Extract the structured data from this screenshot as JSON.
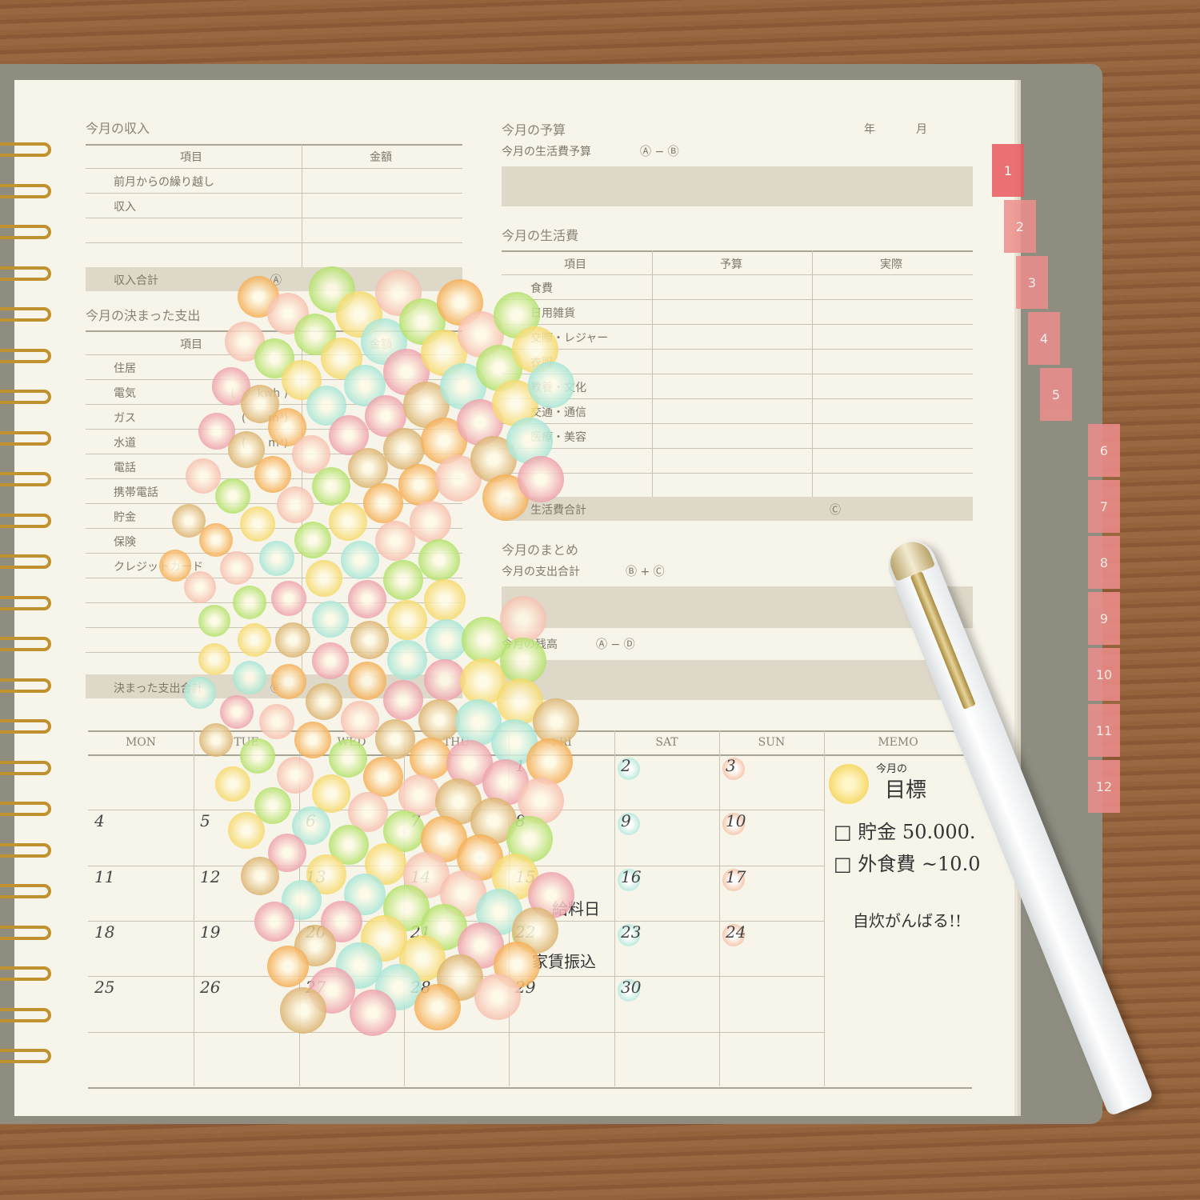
{
  "income": {
    "title": "今月の収入",
    "col_item": "項目",
    "col_amount": "金額",
    "rows": [
      "前月からの繰り越し",
      "収入",
      "",
      ""
    ],
    "total": "収入合計",
    "total_mark": "Ⓐ"
  },
  "fixed": {
    "title": "今月の決まった支出",
    "col_item": "項目",
    "col_amount": "金額",
    "rows": [
      {
        "label": "住居",
        "unit": ""
      },
      {
        "label": "電気",
        "unit": "(　　kwh )"
      },
      {
        "label": "ガス",
        "unit": "(　　m³)"
      },
      {
        "label": "水道",
        "unit": "(　　m³)"
      },
      {
        "label": "電話",
        "unit": ""
      },
      {
        "label": "携帯電話",
        "unit": ""
      },
      {
        "label": "貯金",
        "unit": ""
      },
      {
        "label": "保険",
        "unit": ""
      },
      {
        "label": "クレジットカード",
        "unit": ""
      }
    ],
    "total": "決まった支出合計",
    "total_mark": "Ⓑ"
  },
  "budget": {
    "title": "今月の予算",
    "year": "年",
    "month": "月",
    "living_budget": "今月の生活費予算",
    "living_formula": "Ⓐ − Ⓑ"
  },
  "living": {
    "title": "今月の生活費",
    "col_item": "項目",
    "col_budget": "予算",
    "col_actual": "実際",
    "rows": [
      "食費",
      "日用雑貨",
      "交際・レジャー",
      "衣服",
      "教養・文化",
      "交通・通信",
      "医療・美容",
      "",
      ""
    ],
    "total": "生活費合計",
    "total_mark": "Ⓒ"
  },
  "summary": {
    "title": "今月のまとめ",
    "spend": "今月の支出合計",
    "spend_formula": "Ⓑ + Ⓒ",
    "spend_mark": "Ⓓ",
    "balance": "今月の残高",
    "balance_formula": "Ⓐ − Ⓓ"
  },
  "calendar": {
    "days": [
      "MON",
      "TUE",
      "WED",
      "THU",
      "FRI",
      "SAT",
      "SUN",
      "MEMO"
    ],
    "weeks": [
      [
        "",
        "",
        "",
        "",
        "1",
        "2",
        "3"
      ],
      [
        "4",
        "5",
        "6",
        "7",
        "8",
        "9",
        "10"
      ],
      [
        "11",
        "12",
        "13",
        "14",
        "15",
        "16",
        "17"
      ],
      [
        "18",
        "19",
        "20",
        "21",
        "22",
        "23",
        "24"
      ],
      [
        "25",
        "26",
        "27",
        "28",
        "29",
        "30",
        ""
      ]
    ],
    "notes": {
      "payday": "給料日",
      "rent": "家賃振込"
    }
  },
  "memo": {
    "goal_small": "今月の",
    "goal": "目標",
    "items": [
      "□ 貯金 50.000.",
      "□ 外食費 ~10.0"
    ],
    "cheer": "自炊がんばる!!"
  },
  "tabs": [
    "1",
    "2",
    "3",
    "4",
    "5",
    "6",
    "7",
    "8",
    "9",
    "10",
    "11",
    "12"
  ],
  "colors": {
    "tab": "#ee8e8c",
    "stickers": [
      "#f29a2e",
      "#f4b0a0",
      "#9fdb4a",
      "#f3d04a",
      "#8fe0d2",
      "#e98a9c",
      "#d2a050"
    ]
  }
}
